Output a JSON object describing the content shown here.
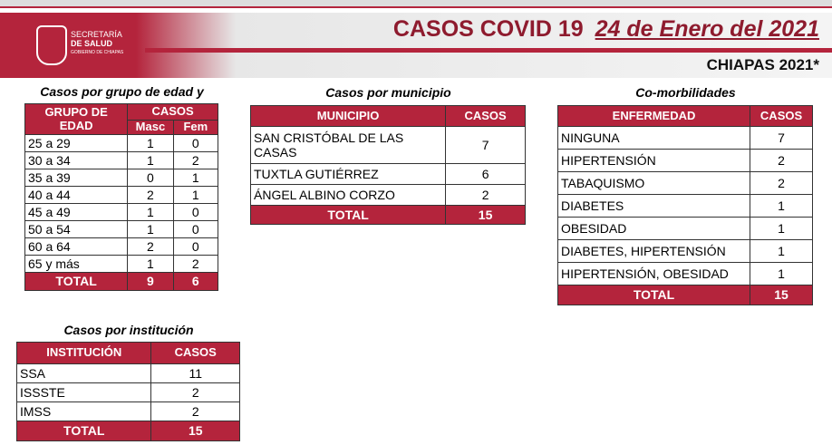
{
  "header": {
    "logo_line1": "SECRETARÍA",
    "logo_line2": "DE SALUD",
    "logo_line3": "GOBIERNO DE CHIAPAS",
    "title": "CASOS COVID 19",
    "date": "24 de Enero del 2021",
    "region": "CHIAPAS 2021*"
  },
  "age_table": {
    "title": "Casos por grupo de edad y sexo",
    "headers": [
      "GRUPO DE EDAD",
      "CASOS",
      "Masc",
      "Fem"
    ],
    "rows": [
      [
        "25 a 29",
        1,
        0
      ],
      [
        "30 a 34",
        1,
        2
      ],
      [
        "35 a 39",
        0,
        1
      ],
      [
        "40 a 44",
        2,
        1
      ],
      [
        "45 a 49",
        1,
        0
      ],
      [
        "50 a 54",
        1,
        0
      ],
      [
        "60 a 64",
        2,
        0
      ],
      [
        "65 y más",
        1,
        2
      ]
    ],
    "total": [
      "TOTAL",
      9,
      6
    ]
  },
  "municipio_table": {
    "title": "Casos por municipio",
    "headers": [
      "MUNICIPIO",
      "CASOS"
    ],
    "rows": [
      [
        "SAN CRISTÓBAL DE LAS CASAS",
        7
      ],
      [
        "TUXTLA GUTIÉRREZ",
        6
      ],
      [
        "ÁNGEL ALBINO CORZO",
        2
      ]
    ],
    "total": [
      "TOTAL",
      15
    ]
  },
  "comorbidity_table": {
    "title": "Co-morbilidades",
    "headers": [
      "ENFERMEDAD",
      "CASOS"
    ],
    "rows": [
      [
        "NINGUNA",
        7
      ],
      [
        "HIPERTENSIÓN",
        2
      ],
      [
        "TABAQUISMO",
        2
      ],
      [
        "DIABETES",
        1
      ],
      [
        "OBESIDAD",
        1
      ],
      [
        "DIABETES, HIPERTENSIÓN",
        1
      ],
      [
        "HIPERTENSIÓN, OBESIDAD",
        1
      ]
    ],
    "total": [
      "TOTAL",
      15
    ]
  },
  "institution_table": {
    "title": "Casos por institución",
    "headers": [
      "INSTITUCIÓN",
      "CASOS"
    ],
    "rows": [
      [
        "SSA",
        11
      ],
      [
        "ISSSTE",
        2
      ],
      [
        "IMSS",
        2
      ]
    ],
    "total": [
      "TOTAL",
      15
    ]
  }
}
